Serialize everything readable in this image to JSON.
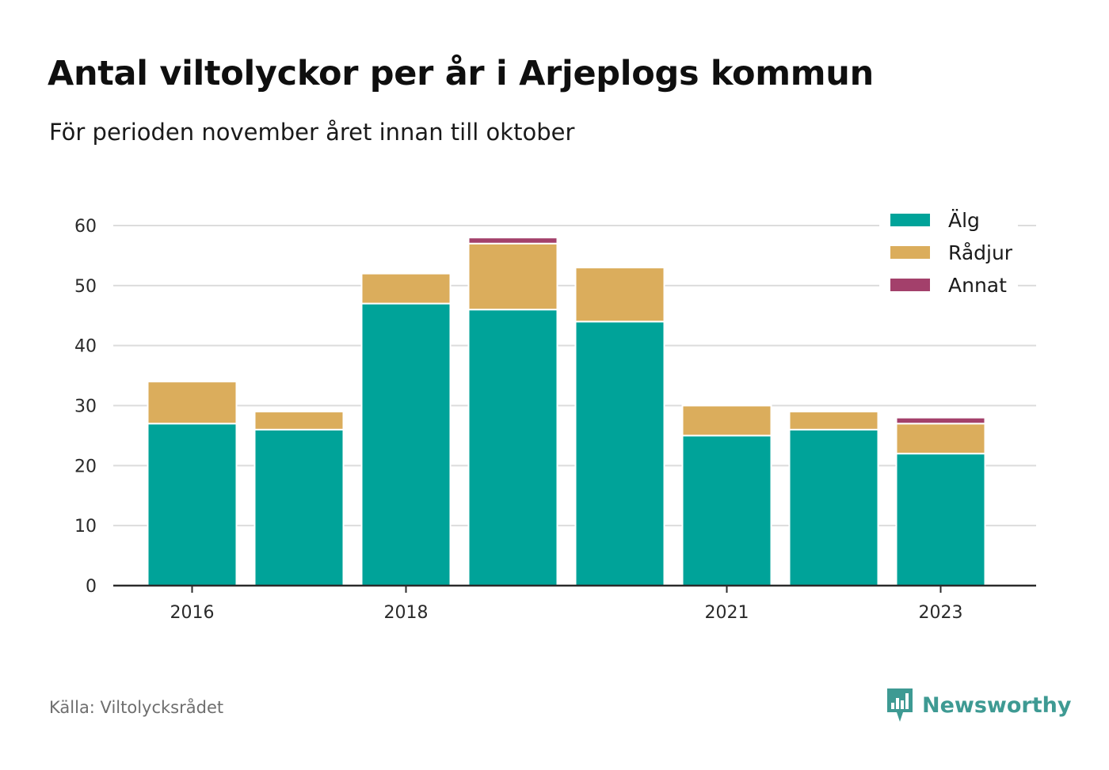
{
  "title": "Antal viltolyckor per år i Arjeplogs kommun",
  "subtitle": "För perioden november året innan till oktober",
  "source": "Källa: Viltolycksrådet",
  "brand": "Newsworthy",
  "chart_data": {
    "type": "bar",
    "stacked": true,
    "categories": [
      "2016",
      "2017",
      "2018",
      "2019",
      "2020",
      "2021",
      "2022",
      "2023"
    ],
    "x_tick_labels": [
      "2016",
      "",
      "2018",
      "",
      "",
      "2021",
      "",
      "2023"
    ],
    "series": [
      {
        "name": "Älg",
        "color": "#00a399",
        "values": [
          27,
          26,
          47,
          46,
          44,
          25,
          26,
          22
        ]
      },
      {
        "name": "Rådjur",
        "color": "#dbad5c",
        "values": [
          7,
          3,
          5,
          11,
          9,
          5,
          3,
          5
        ]
      },
      {
        "name": "Annat",
        "color": "#a3406b",
        "values": [
          0,
          0,
          0,
          1,
          0,
          0,
          0,
          1
        ]
      }
    ],
    "ylim": [
      0,
      60
    ],
    "yticks": [
      0,
      10,
      20,
      30,
      40,
      50,
      60
    ],
    "xlabel": "",
    "ylabel": "",
    "grid": true,
    "legend_position": "top-right"
  }
}
